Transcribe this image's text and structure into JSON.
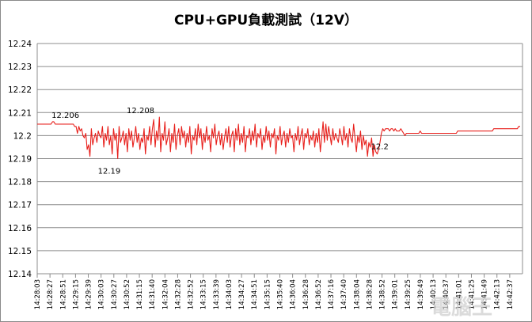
{
  "chart_data": {
    "type": "line",
    "title": "CPU+GPU負載測試（12V）",
    "xlabel": "",
    "ylabel": "",
    "ylim": [
      12.14,
      12.24
    ],
    "yticks": [
      "12.14",
      "12.15",
      "12.16",
      "12.17",
      "12.18",
      "12.19",
      "12.2",
      "12.21",
      "12.22",
      "12.23",
      "12.24"
    ],
    "grid": true,
    "legend": "none",
    "line_color": "#e8201c",
    "xticks": [
      "14:28:03",
      "14:28:27",
      "14:28:51",
      "14:29:15",
      "14:29:39",
      "14:30:03",
      "14:30:27",
      "14:30:52",
      "14:31:15",
      "14:31:40",
      "14:32:04",
      "14:32:28",
      "14:32:52",
      "14:33:15",
      "14:33:39",
      "14:34:03",
      "14:34:27",
      "14:34:51",
      "14:35:15",
      "14:35:40",
      "14:36:04",
      "14:36:28",
      "14:36:52",
      "14:37:16",
      "14:37:40",
      "14:38:04",
      "14:38:28",
      "14:38:52",
      "14:39:01",
      "14:39:25",
      "14:39:49",
      "14:40:13",
      "14:40:37",
      "14:41:01",
      "14:41:25",
      "14:41:49",
      "14:42:13",
      "14:42:37"
    ],
    "annotations": [
      {
        "text": "12.206",
        "x": "14:28:27",
        "y": 12.206
      },
      {
        "text": "12.19",
        "x": "14:30:03",
        "y": 12.19
      },
      {
        "text": "12.208",
        "x": "14:31:15",
        "y": 12.208
      },
      {
        "text": "12.2",
        "x": "14:38:52",
        "y": 12.2
      }
    ],
    "series": [
      {
        "values": [
          12.205,
          12.205,
          12.205,
          12.205,
          12.205,
          12.205,
          12.205,
          12.205,
          12.205,
          12.205,
          12.205,
          12.206,
          12.206,
          12.205,
          12.205,
          12.205,
          12.205,
          12.205,
          12.205,
          12.205,
          12.205,
          12.205,
          12.205,
          12.205,
          12.205,
          12.205,
          12.205,
          12.204,
          12.204,
          12.201,
          12.204,
          12.202,
          12.203,
          12.2,
          12.199,
          12.201,
          12.194,
          12.196,
          12.191,
          12.203,
          12.196,
          12.199,
          12.201,
          12.197,
          12.202,
          12.2,
          12.199,
          12.204,
          12.195,
          12.201,
          12.198,
          12.204,
          12.196,
          12.2,
          12.192,
          12.203,
          12.198,
          12.201,
          12.19,
          12.204,
          12.197,
          12.199,
          12.202,
          12.196,
          12.201,
          12.193,
          12.203,
          12.198,
          12.202,
          12.195,
          12.199,
          12.204,
          12.197,
          12.201,
          12.194,
          12.199,
          12.197,
          12.203,
          12.192,
          12.2,
          12.198,
          12.204,
          12.196,
          12.203,
          12.207,
          12.195,
          12.202,
          12.198,
          12.208,
          12.193,
          12.201,
          12.198,
          12.206,
          12.196,
          12.199,
          12.203,
          12.193,
          12.201,
          12.197,
          12.205,
          12.194,
          12.2,
          12.203,
          12.196,
          12.204,
          12.199,
          12.202,
          12.195,
          12.201,
          12.197,
          12.204,
          12.192,
          12.2,
          12.198,
          12.203,
          12.196,
          12.205,
          12.199,
          12.203,
          12.194,
          12.201,
          12.197,
          12.204,
          12.198,
          12.2,
          12.193,
          12.203,
          12.199,
          12.205,
          12.196,
          12.2,
          12.202,
          12.196,
          12.201,
          12.194,
          12.199,
          12.203,
          12.197,
          12.204,
          12.195,
          12.2,
          12.202,
          12.193,
          12.203,
          12.198,
          12.205,
          12.196,
          12.201,
          12.197,
          12.204,
          12.193,
          12.2,
          12.199,
          12.203,
          12.196,
          12.202,
          12.198,
          12.205,
          12.195,
          12.201,
          12.199,
          12.203,
          12.194,
          12.2,
          12.197,
          12.204,
          12.198,
          12.202,
          12.195,
          12.201,
          12.199,
          12.203,
          12.192,
          12.2,
          12.198,
          12.204,
          12.196,
          12.2,
          12.202,
          12.195,
          12.201,
          12.197,
          12.203,
          12.199,
          12.2,
          12.193,
          12.201,
          12.198,
          12.204,
          12.196,
          12.2,
          12.203,
          12.194,
          12.201,
          12.199,
          12.203,
          12.196,
          12.2,
          12.198,
          12.202,
          12.195,
          12.201,
          12.197,
          12.203,
          12.193,
          12.199,
          12.206,
          12.197,
          12.205,
          12.198,
          12.204,
          12.2,
          12.196,
          12.203,
          12.198,
          12.201,
          12.199,
          12.197,
          12.203,
          12.2,
          12.196,
          12.204,
          12.198,
          12.201,
          12.195,
          12.203,
          12.199,
          12.197,
          12.205,
          12.199,
          12.193,
          12.2,
          12.197,
          12.202,
          12.194,
          12.2,
          12.196,
          12.198,
          12.191,
          12.197,
          12.195,
          12.199,
          12.191,
          12.196,
          12.193,
          12.192,
          12.194,
          12.197,
          12.201,
          12.203,
          12.202,
          12.203,
          12.203,
          12.203,
          12.202,
          12.203,
          12.203,
          12.202,
          12.203,
          12.202,
          12.202,
          12.202,
          12.203,
          12.202,
          12.201,
          12.2,
          12.201,
          12.201,
          12.201,
          12.201,
          12.201,
          12.201,
          12.201,
          12.201,
          12.201,
          12.201,
          12.202,
          12.201,
          12.201,
          12.201,
          12.201,
          12.201,
          12.201,
          12.201,
          12.201,
          12.201,
          12.201,
          12.201,
          12.201,
          12.201,
          12.201,
          12.201,
          12.201,
          12.201,
          12.201,
          12.201,
          12.201,
          12.201,
          12.201,
          12.201,
          12.201,
          12.201,
          12.201,
          12.202,
          12.202,
          12.202,
          12.202,
          12.202,
          12.202,
          12.202,
          12.202,
          12.202,
          12.202,
          12.202,
          12.202,
          12.202,
          12.202,
          12.202,
          12.202,
          12.202,
          12.202,
          12.202,
          12.202,
          12.202,
          12.202,
          12.202,
          12.202,
          12.202,
          12.202,
          12.203,
          12.203,
          12.203,
          12.203,
          12.203,
          12.203,
          12.203,
          12.203,
          12.203,
          12.203,
          12.203,
          12.203,
          12.203,
          12.203,
          12.203,
          12.203,
          12.203,
          12.203,
          12.204,
          12.204
        ]
      }
    ]
  },
  "watermark": {
    "text": "電腦王"
  }
}
